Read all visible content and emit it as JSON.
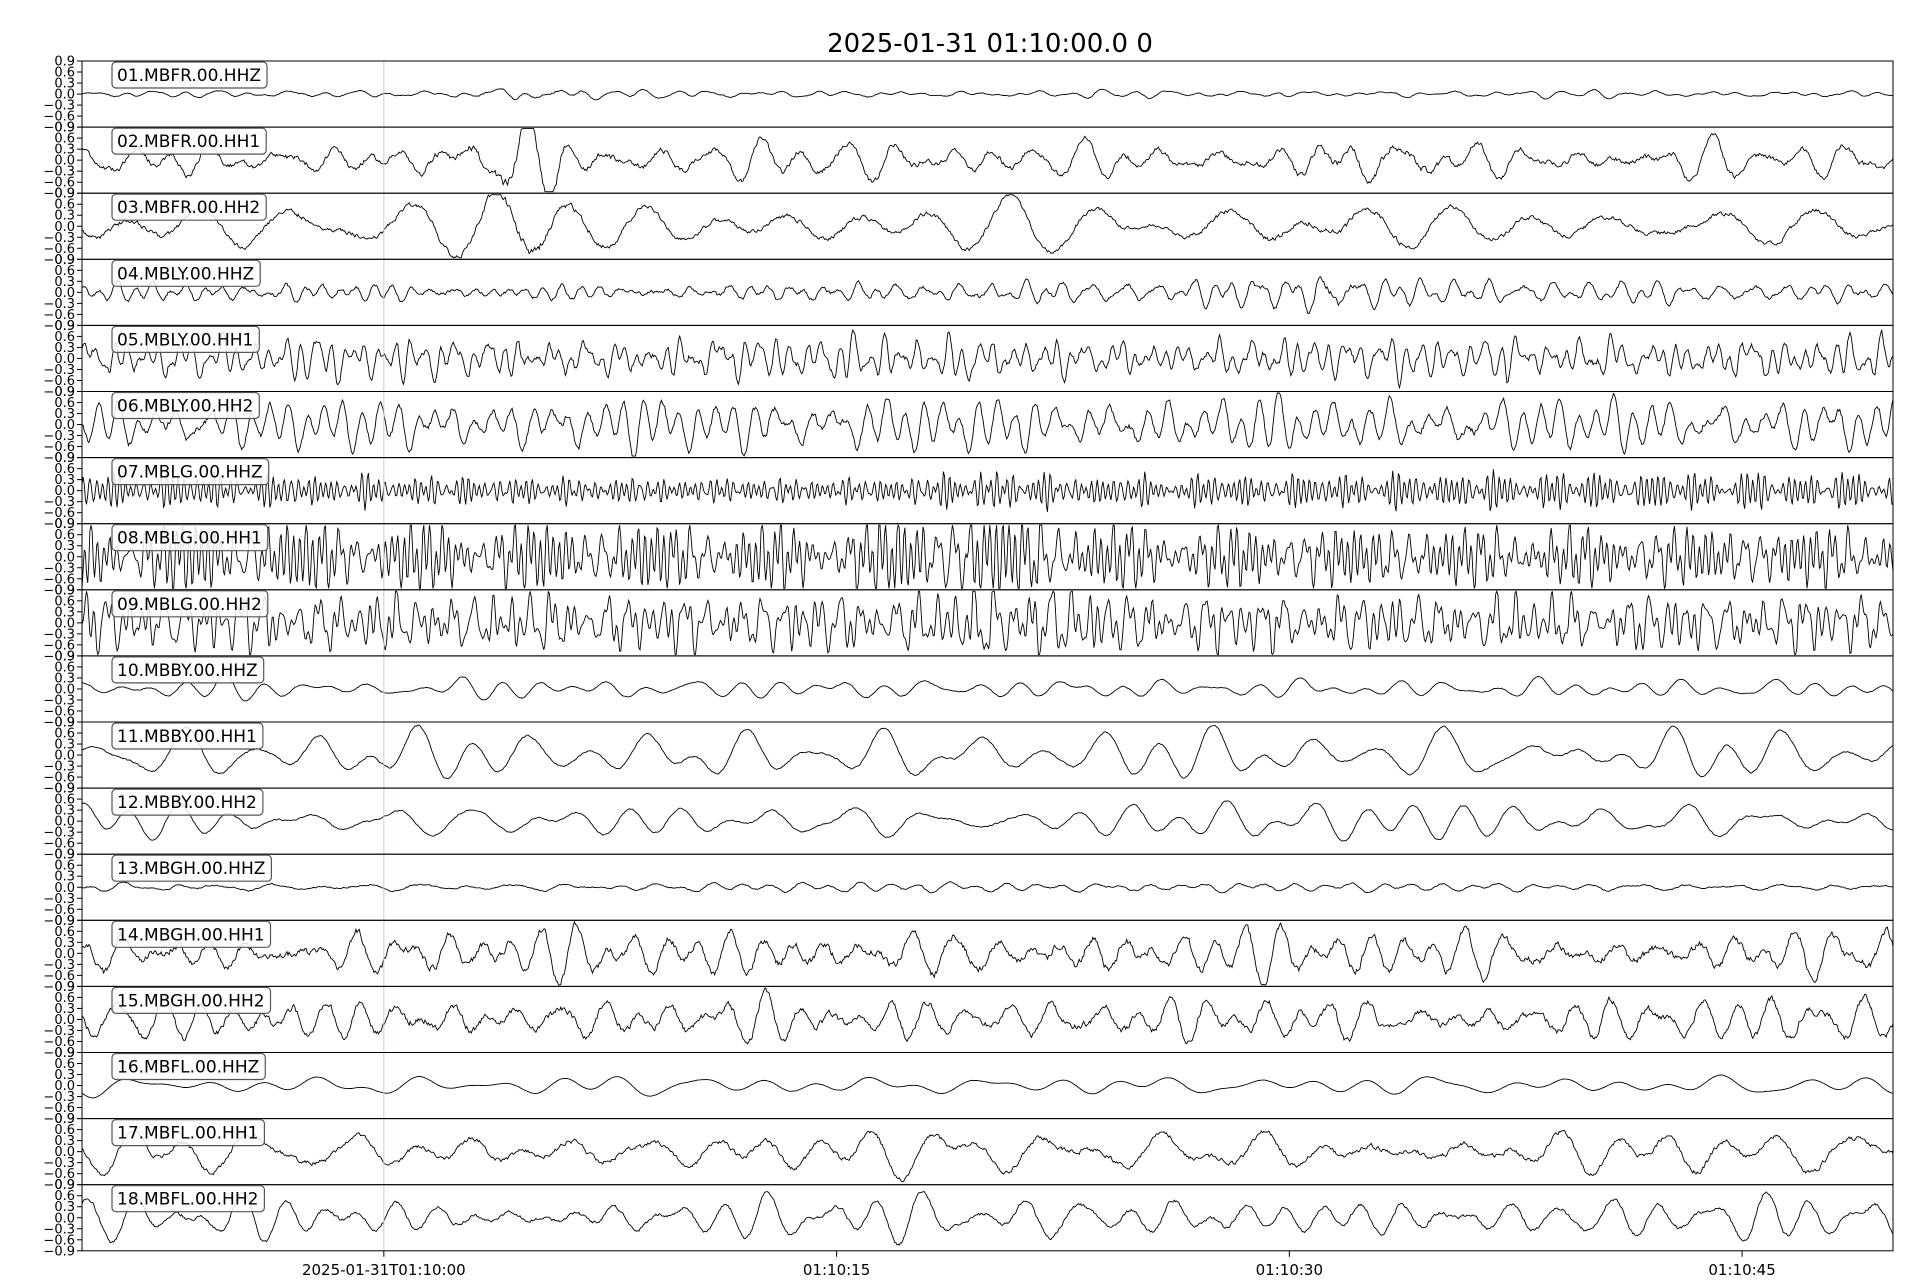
{
  "chart_data": {
    "type": "line",
    "title": "2025-01-31 01:10:00.0  0",
    "xlabel": "",
    "ylabel": "",
    "x_unit": "seconds",
    "xlim": [
      -10,
      50
    ],
    "x_ticks": [
      {
        "value": 0,
        "label": "2025-01-31T01:10:00"
      },
      {
        "value": 15,
        "label": "01:10:15"
      },
      {
        "value": 30,
        "label": "01:10:30"
      },
      {
        "value": 45,
        "label": "01:10:45"
      }
    ],
    "ylim": [
      -0.9,
      0.9
    ],
    "y_ticks": [
      0.9,
      0.6,
      0.3,
      0.0,
      -0.3,
      -0.6,
      -0.9
    ],
    "y_tick_labels": [
      "0.9",
      "0.6",
      "0.3",
      "0.0",
      "−0.3",
      "−0.6",
      "−0.9"
    ],
    "marker_line_x": 0,
    "marker_line_color": "#b5dcb5",
    "line_color": "#000000",
    "grid": false,
    "series": [
      {
        "name": "01.MBFR.00.HHZ",
        "amplitude": 0.07,
        "noise": 0.35,
        "freq": 0.8,
        "bursts": [
          [
            5,
            0.08
          ]
        ]
      },
      {
        "name": "02.MBFR.00.HH1",
        "amplitude": 0.35,
        "noise": 0.45,
        "freq": 0.5,
        "bursts": [
          [
            4.5,
            0.35
          ],
          [
            33,
            0.2
          ]
        ]
      },
      {
        "name": "03.MBFR.00.HH2",
        "amplitude": 0.45,
        "noise": 0.3,
        "freq": 0.3,
        "bursts": [
          [
            4.5,
            0.4
          ],
          [
            31,
            0.2
          ]
        ]
      },
      {
        "name": "04.MBLY.00.HHZ",
        "amplitude": 0.2,
        "noise": 0.55,
        "freq": 1.2,
        "bursts": [
          [
            31,
            0.15
          ]
        ]
      },
      {
        "name": "05.MBLY.00.HH1",
        "amplitude": 0.4,
        "noise": 0.55,
        "freq": 1.4,
        "bursts": []
      },
      {
        "name": "06.MBLY.00.HH2",
        "amplitude": 0.45,
        "noise": 0.45,
        "freq": 1.0,
        "bursts": []
      },
      {
        "name": "07.MBLG.00.HHZ",
        "amplitude": 0.3,
        "noise": 0.15,
        "freq": 2.8,
        "bursts": [
          [
            20,
            0.15
          ]
        ]
      },
      {
        "name": "08.MBLG.00.HH1",
        "amplitude": 0.65,
        "noise": 0.1,
        "freq": 2.4,
        "bursts": [
          [
            18,
            0.25
          ],
          [
            21,
            0.25
          ]
        ]
      },
      {
        "name": "09.MBLG.00.HH2",
        "amplitude": 0.55,
        "noise": 0.1,
        "freq": 2.4,
        "bursts": [
          [
            21,
            0.3
          ]
        ]
      },
      {
        "name": "10.MBBY.00.HHZ",
        "amplitude": 0.2,
        "noise": 0.12,
        "freq": 0.45,
        "bursts": []
      },
      {
        "name": "11.MBBY.00.HH1",
        "amplitude": 0.5,
        "noise": 0.1,
        "freq": 0.4,
        "bursts": []
      },
      {
        "name": "12.MBBY.00.HH2",
        "amplitude": 0.35,
        "noise": 0.12,
        "freq": 0.42,
        "bursts": []
      },
      {
        "name": "13.MBGH.00.HHZ",
        "amplitude": 0.1,
        "noise": 0.4,
        "freq": 0.7,
        "bursts": []
      },
      {
        "name": "14.MBGH.00.HH1",
        "amplitude": 0.45,
        "noise": 0.5,
        "freq": 0.55,
        "bursts": []
      },
      {
        "name": "15.MBGH.00.HH2",
        "amplitude": 0.4,
        "noise": 0.5,
        "freq": 0.5,
        "bursts": []
      },
      {
        "name": "16.MBFL.00.HHZ",
        "amplitude": 0.18,
        "noise": 0.05,
        "freq": 0.4,
        "bursts": []
      },
      {
        "name": "17.MBFL.00.HH1",
        "amplitude": 0.4,
        "noise": 0.35,
        "freq": 0.4,
        "bursts": []
      },
      {
        "name": "18.MBFL.00.HH2",
        "amplitude": 0.4,
        "noise": 0.25,
        "freq": 0.4,
        "bursts": []
      }
    ]
  }
}
